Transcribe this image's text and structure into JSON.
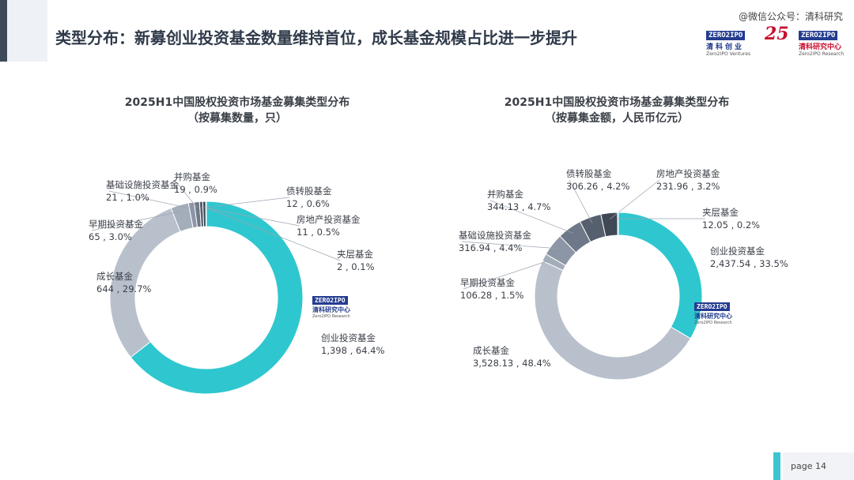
{
  "header": {
    "title": "类型分布：新募创业投资基金数量维持首位，成长基金规模占比进一步提升",
    "wechat": "@微信公众号：清科研究",
    "logo_left": {
      "en": "ZERO2IPO",
      "cn": "清科创业",
      "sub": "Zero2IPO Ventures"
    },
    "logo_mid": "25",
    "logo_right": {
      "en": "ZERO2IPO",
      "cn": "清科研究中心",
      "sub": "Zero2IPO Research"
    }
  },
  "watermark": {
    "en": "ZERO2IPO",
    "cn": "清科研究中心",
    "sub": "Zero2IPO Research"
  },
  "footer": {
    "page_label": "page  14"
  },
  "colors": {
    "accent": "#2fc7cf",
    "grey": "#b8c0cc"
  },
  "chart_data": [
    {
      "type": "pie",
      "donut": true,
      "title": "2025H1中国股权投资市场基金募集类型分布",
      "subtitle": "（按募集数量，只）",
      "slices": [
        {
          "name": "创业投资基金",
          "value": 1398,
          "pct": "64.4%",
          "label_value": "1,398",
          "color": "#2fc7cf"
        },
        {
          "name": "成长基金",
          "value": 644,
          "pct": "29.7%",
          "label_value": "644",
          "color": "#b8c0cc"
        },
        {
          "name": "早期投资基金",
          "value": 65,
          "pct": "3.0%",
          "label_value": "65",
          "color": "#a4adba"
        },
        {
          "name": "基础设施投资基金",
          "value": 21,
          "pct": "1.0%",
          "label_value": "21",
          "color": "#8c96a6"
        },
        {
          "name": "并购基金",
          "value": 19,
          "pct": "0.9%",
          "label_value": "19",
          "color": "#6e7888"
        },
        {
          "name": "债转股基金",
          "value": 12,
          "pct": "0.6%",
          "label_value": "12",
          "color": "#565f6d"
        },
        {
          "name": "房地产投资基金",
          "value": 11,
          "pct": "0.5%",
          "label_value": "11",
          "color": "#404855"
        },
        {
          "name": "夹层基金",
          "value": 2,
          "pct": "0.1%",
          "label_value": "2",
          "color": "#2b313b"
        }
      ]
    },
    {
      "type": "pie",
      "donut": true,
      "title": "2025H1中国股权投资市场基金募集类型分布",
      "subtitle": "（按募集金额，人民币亿元）",
      "slices": [
        {
          "name": "创业投资基金",
          "value": 2437.54,
          "pct": "33.5%",
          "label_value": "2,437.54",
          "color": "#2fc7cf"
        },
        {
          "name": "成长基金",
          "value": 3528.13,
          "pct": "48.4%",
          "label_value": "3,528.13",
          "color": "#b8c0cc"
        },
        {
          "name": "早期投资基金",
          "value": 106.28,
          "pct": "1.5%",
          "label_value": "106.28",
          "color": "#a4adba"
        },
        {
          "name": "基础设施投资基金",
          "value": 316.94,
          "pct": "4.4%",
          "label_value": "316.94",
          "color": "#8c96a6"
        },
        {
          "name": "并购基金",
          "value": 344.13,
          "pct": "4.7%",
          "label_value": "344.13",
          "color": "#6e7888"
        },
        {
          "name": "债转股基金",
          "value": 306.26,
          "pct": "4.2%",
          "label_value": "306.26",
          "color": "#565f6d"
        },
        {
          "name": "房地产投资基金",
          "value": 231.96,
          "pct": "3.2%",
          "label_value": "231.96",
          "color": "#404855"
        },
        {
          "name": "夹层基金",
          "value": 12.05,
          "pct": "0.2%",
          "label_value": "12.05",
          "color": "#2b313b"
        }
      ]
    }
  ]
}
